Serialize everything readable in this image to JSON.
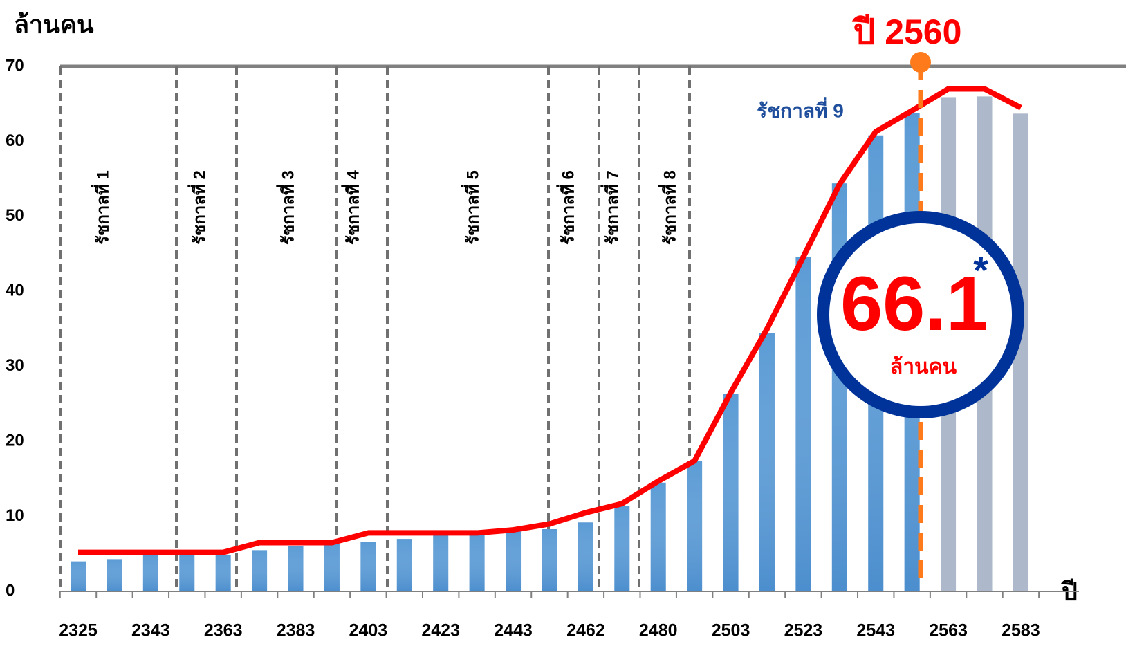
{
  "chart_data": {
    "type": "bar",
    "y_label": "ล้านคน",
    "x_label": "ปี",
    "categories": [
      "2325",
      null,
      "2343",
      null,
      "2363",
      null,
      "2383",
      null,
      "2403",
      null,
      "2423",
      null,
      "2443",
      null,
      "2462",
      null,
      "2480",
      null,
      "2503",
      null,
      "2523",
      null,
      "2543",
      null,
      "2563",
      null,
      "2583"
    ],
    "values": [
      4.0,
      4.3,
      4.8,
      4.8,
      4.8,
      5.5,
      6.0,
      6.3,
      6.6,
      7.0,
      7.5,
      7.5,
      8.0,
      8.3,
      9.2,
      11.4,
      14.5,
      17.4,
      26.3,
      34.4,
      44.6,
      54.4,
      60.8,
      63.8,
      65.9,
      66.0,
      63.7
    ],
    "colors": [
      "#5b9bd5",
      "#5b9bd5",
      "#5b9bd5",
      "#5b9bd5",
      "#5b9bd5",
      "#5b9bd5",
      "#5b9bd5",
      "#5b9bd5",
      "#5b9bd5",
      "#5b9bd5",
      "#5b9bd5",
      "#5b9bd5",
      "#5b9bd5",
      "#5b9bd5",
      "#5b9bd5",
      "#5b9bd5",
      "#5b9bd5",
      "#5b9bd5",
      "#5b9bd5",
      "#5b9bd5",
      "#5b9bd5",
      "#5b9bd5",
      "#5b9bd5",
      "#5b9bd5",
      "#adb9ca",
      "#adb9ca",
      "#adb9ca"
    ],
    "line_values": [
      5.2,
      5.2,
      5.2,
      5.2,
      5.2,
      6.5,
      6.5,
      6.5,
      7.8,
      7.8,
      7.8,
      7.8,
      8.2,
      9.0,
      10.5,
      11.7,
      14.7,
      17.4,
      26.5,
      35.0,
      44.6,
      54.3,
      61.3,
      64.1,
      67.0,
      67.0,
      64.5
    ],
    "line_color": "#ff0000",
    "ylim": [
      0,
      70
    ],
    "yticks": [
      0,
      10,
      20,
      30,
      40,
      50,
      60,
      70
    ],
    "grid": false,
    "reigns": [
      "รัชกาลที่ 1",
      "รัชกาลที่ 2",
      "รัชกาลที่ 3",
      "รัชกาลที่ 4",
      "รัชกาลที่ 5",
      "รัชกาลที่ 6",
      "รัชกาลที่ 7",
      "รัชกาลที่ 8",
      "รัชกาลที่ 9"
    ],
    "highlight_year": "ปี 2560",
    "highlight_value": "66.1",
    "highlight_unit": "ล้านคน",
    "highlight_mark": "*"
  }
}
